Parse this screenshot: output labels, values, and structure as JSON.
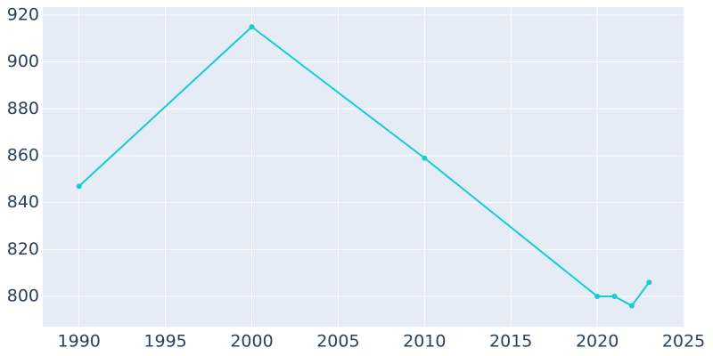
{
  "chart_data": {
    "type": "line",
    "x": [
      1990,
      2000,
      2010,
      2020,
      2021,
      2022,
      2023
    ],
    "series": [
      {
        "color": "#17cccc",
        "values": [
          847,
          915,
          859,
          800,
          800,
          796,
          806
        ]
      }
    ],
    "xlim": [
      1987.9,
      2025.05
    ],
    "xticks": [
      1990,
      1995,
      2000,
      2005,
      2010,
      2015,
      2020,
      2025
    ],
    "ylim": [
      787.1,
      923.4
    ],
    "yticks": [
      800,
      820,
      840,
      860,
      880,
      900,
      920
    ],
    "grid": true
  }
}
